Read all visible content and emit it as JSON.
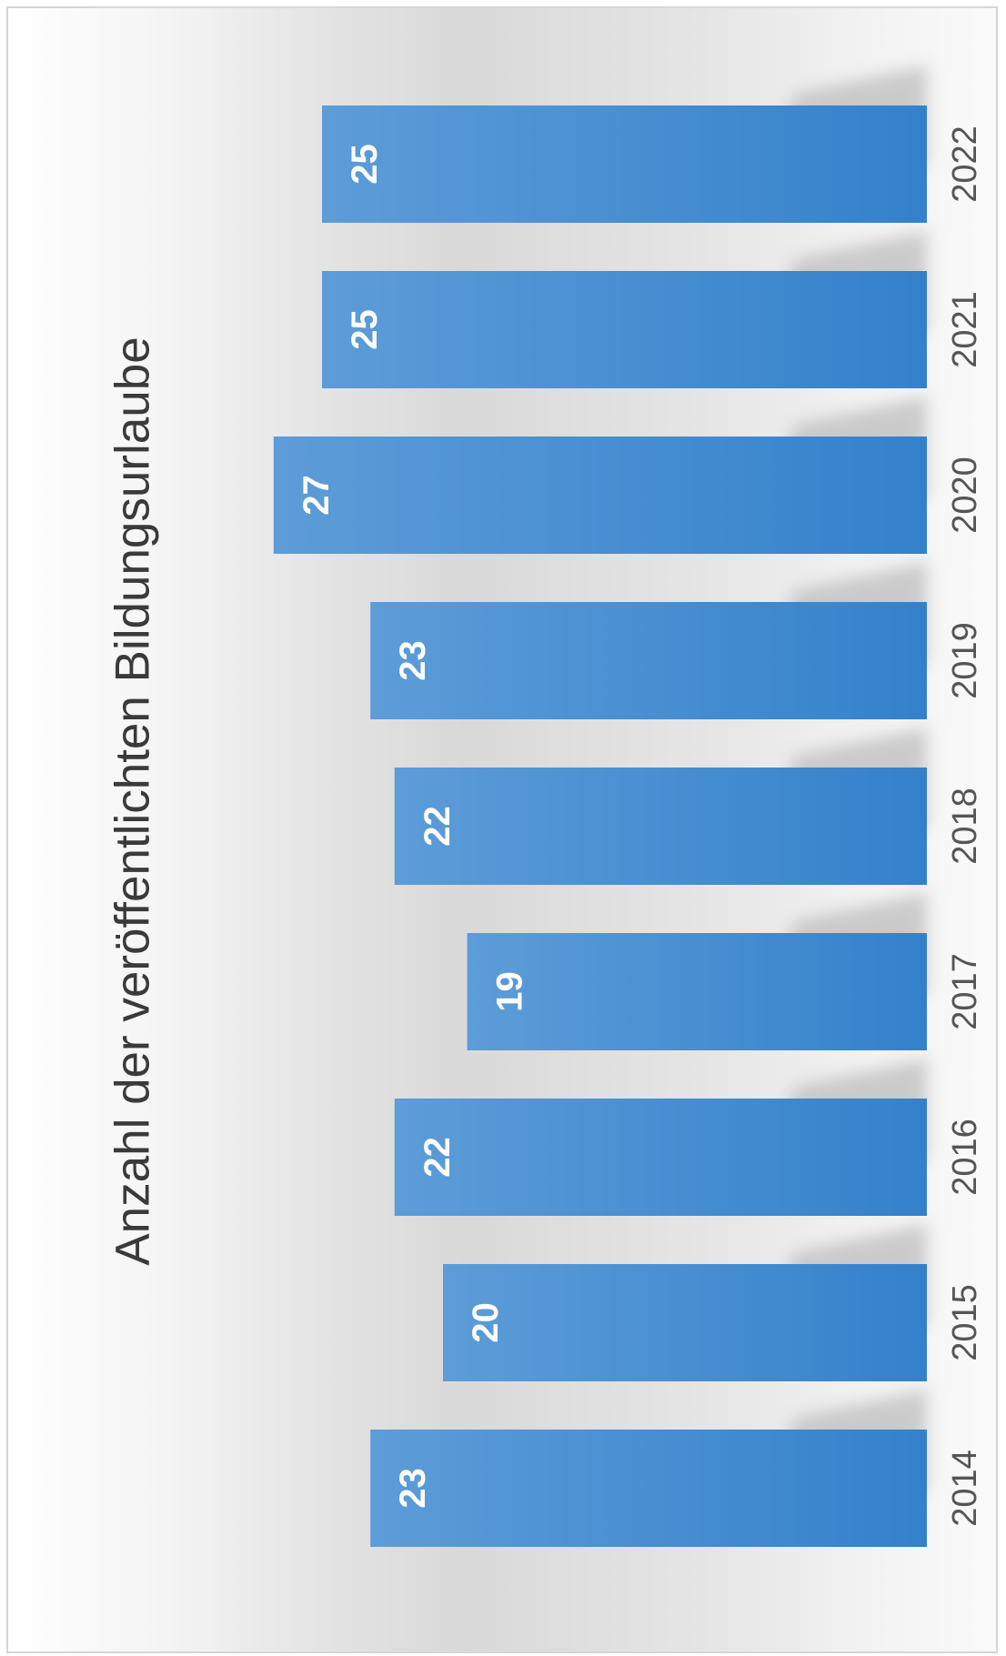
{
  "chart_data": {
    "type": "bar",
    "orientation": "rotated-90-clockwise",
    "title": "Anzahl der veröffentlichten Bildungsurlaube",
    "categories": [
      "2014",
      "2015",
      "2016",
      "2017",
      "2018",
      "2019",
      "2020",
      "2021",
      "2022"
    ],
    "values": [
      23,
      20,
      22,
      19,
      22,
      23,
      27,
      25,
      25
    ],
    "data_labels": [
      "23",
      "20",
      "22",
      "19",
      "22",
      "23",
      "27",
      "25",
      "25"
    ],
    "xlabel": "",
    "ylabel": "",
    "ylim": [
      0,
      27
    ],
    "grid": false,
    "legend": "none",
    "colors": {
      "bar_light": "#5d9cd8",
      "bar_dark": "#3481cb",
      "label_text": "#ffffff",
      "category_text": "#555555",
      "title_text": "#3a3a3a",
      "shadow": "#bdbdbd"
    }
  }
}
